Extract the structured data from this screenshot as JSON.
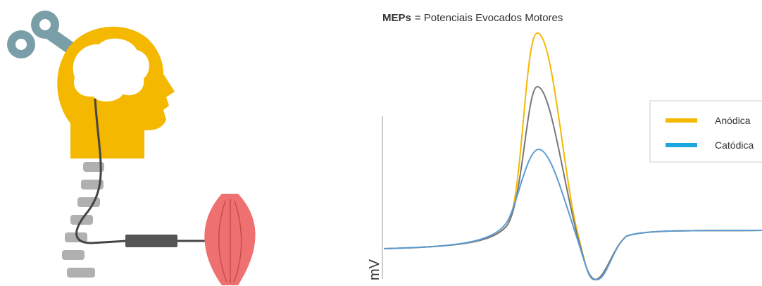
{
  "title": {
    "abbr": "MEPs",
    "rest": "= Potenciais Evocados Motores"
  },
  "axis_label": "mV",
  "legend": [
    "Anódica",
    "Catódica"
  ]
}
